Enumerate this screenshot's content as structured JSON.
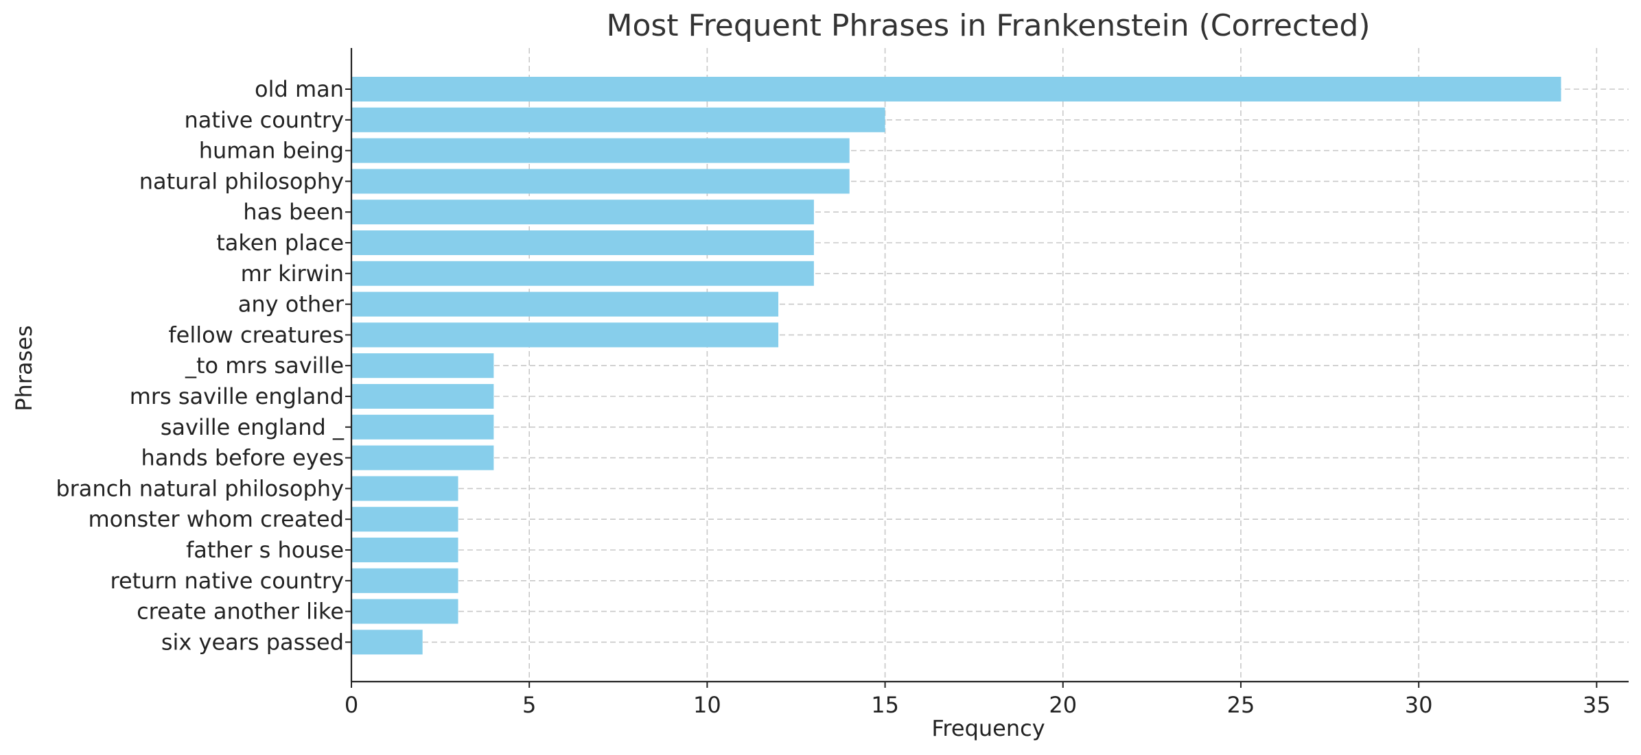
{
  "chart_data": {
    "type": "bar",
    "orientation": "horizontal",
    "title": "Most Frequent Phrases in Frankenstein (Corrected)",
    "xlabel": "Frequency",
    "ylabel": "Phrases",
    "xlim": [
      0,
      35.9
    ],
    "xticks": [
      0,
      5,
      10,
      15,
      20,
      25,
      30,
      35
    ],
    "grid": true,
    "bar_color": "#87ceeb",
    "categories": [
      "old man",
      "native country",
      "human being",
      "natural philosophy",
      "has been",
      "taken place",
      "mr kirwin",
      "any other",
      "fellow creatures",
      "_to mrs saville",
      "mrs saville england",
      "saville england _",
      "hands before eyes",
      "branch natural philosophy",
      "monster whom created",
      "father s house",
      "return native country",
      "create another like",
      "six years passed"
    ],
    "values": [
      34,
      15,
      14,
      14,
      13,
      13,
      13,
      12,
      12,
      4,
      4,
      4,
      4,
      3,
      3,
      3,
      3,
      3,
      2
    ]
  }
}
